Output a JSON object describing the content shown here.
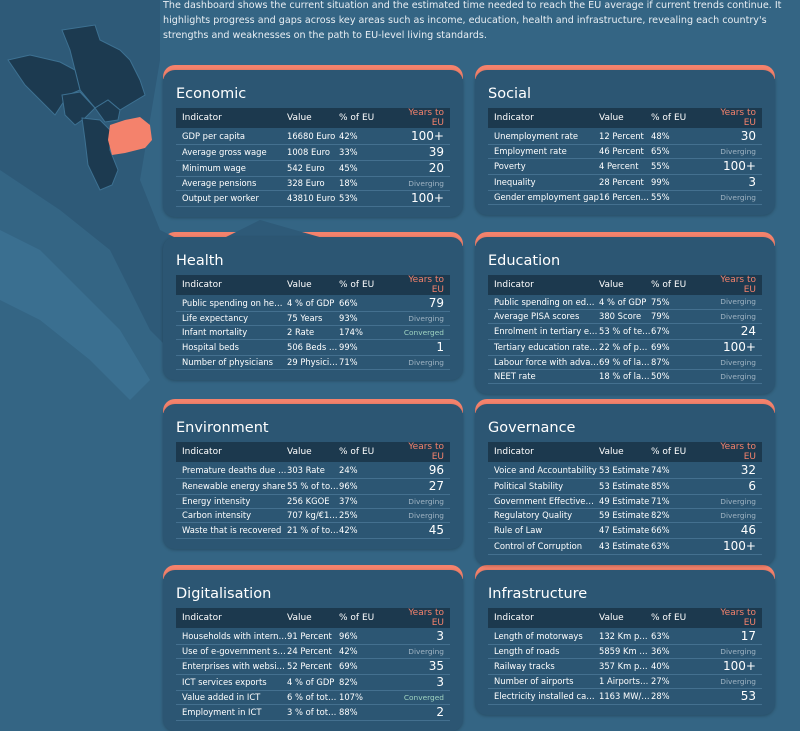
{
  "intro": "The dashboard shows the current situation and the estimated time needed to reach the EU average if current trends continue. It highlights progress and gaps across key areas such as income, education, health and infrastructure, revealing each country's strengths and weaknesses on the path to EU-level living standards.",
  "colors": {
    "background": "#346584",
    "card": "#2c5673",
    "header_row": "#1c394e",
    "accent": "#f4826c",
    "highlighted_country": "#f4826c",
    "other_countries": "#1c3a50"
  },
  "columns": {
    "indicator": "Indicator",
    "value": "Value",
    "pct": "% of EU",
    "years": "Years to EU"
  },
  "sections": [
    {
      "title": "Economic",
      "rows": [
        [
          "GDP per capita",
          "16680 Euro",
          "42%",
          "100+"
        ],
        [
          "Average gross wage",
          "1008 Euro",
          "33%",
          "39"
        ],
        [
          "Minimum wage",
          "542 Euro",
          "45%",
          "20"
        ],
        [
          "Average pensions",
          "328 Euro",
          "18%",
          "Diverging"
        ],
        [
          "Output per worker",
          "43810 Euro",
          "53%",
          "100+"
        ]
      ]
    },
    {
      "title": "Social",
      "rows": [
        [
          "Unemployment rate",
          "12 Percent",
          "48%",
          "30"
        ],
        [
          "Employment rate",
          "46 Percent",
          "65%",
          "Diverging"
        ],
        [
          "Poverty",
          "4 Percent",
          "55%",
          "100+"
        ],
        [
          "Inequality",
          "28 Percent",
          "99%",
          "3"
        ],
        [
          "Gender employment gap",
          "16 Percent…",
          "55%",
          "Diverging"
        ]
      ]
    },
    {
      "title": "Health",
      "rows": [
        [
          "Public spending on health",
          "4 % of GDP",
          "66%",
          "79"
        ],
        [
          "Life expectancy",
          "75 Years",
          "93%",
          "Diverging"
        ],
        [
          "Infant mortality",
          "2 Rate",
          "174%",
          "Converged"
        ],
        [
          "Hospital beds",
          "506 Beds …",
          "99%",
          "1"
        ],
        [
          "Number of physicians",
          "29 Physici…",
          "71%",
          "Diverging"
        ]
      ]
    },
    {
      "title": "Education",
      "rows": [
        [
          "Public spending on edu…",
          "4 % of GDP",
          "75%",
          "Diverging"
        ],
        [
          "Average PISA scores",
          "380 Score",
          "79%",
          "Diverging"
        ],
        [
          "Enrolment in tertiary e…",
          "53 % of te…",
          "67%",
          "24"
        ],
        [
          "Tertiary education rate …",
          "22 % of po…",
          "69%",
          "100+"
        ],
        [
          "Labour force with adva…",
          "69 % of la…",
          "87%",
          "Diverging"
        ],
        [
          "NEET rate",
          "18 % of la…",
          "50%",
          "Diverging"
        ]
      ]
    },
    {
      "title": "Environment",
      "rows": [
        [
          "Premature deaths due t…",
          "303 Rate",
          "24%",
          "96"
        ],
        [
          "Renewable energy share",
          "55 % of to…",
          "96%",
          "27"
        ],
        [
          "Energy intensity",
          "256 KGOE",
          "37%",
          "Diverging"
        ],
        [
          "Carbon intensity",
          "707 kg/€1…",
          "25%",
          "Diverging"
        ],
        [
          "Waste that is recovered",
          "21 % of to…",
          "42%",
          "45"
        ]
      ]
    },
    {
      "title": "Governance",
      "rows": [
        [
          "Voice and Accountability",
          "53 Estimate",
          "74%",
          "32"
        ],
        [
          "Political Stability",
          "53 Estimate",
          "85%",
          "6"
        ],
        [
          "Government Effectiven…",
          "49 Estimate",
          "71%",
          "Diverging"
        ],
        [
          "Regulatory Quality",
          "59 Estimate",
          "82%",
          "Diverging"
        ],
        [
          "Rule of Law",
          "47 Estimate",
          "66%",
          "46"
        ],
        [
          "Control of Corruption",
          "43 Estimate",
          "63%",
          "100+"
        ]
      ]
    },
    {
      "title": "Digitalisation",
      "rows": [
        [
          "Households with intern…",
          "91 Percent",
          "96%",
          "3"
        ],
        [
          "Use of e-government se…",
          "24 Percent",
          "42%",
          "Diverging"
        ],
        [
          "Enterprises with websites",
          "52 Percent",
          "69%",
          "35"
        ],
        [
          "ICT services exports",
          "4 % of GDP",
          "82%",
          "3"
        ],
        [
          "Value added in ICT",
          "6 % of tot…",
          "107%",
          "Converged"
        ],
        [
          "Employment in ICT",
          "3 % of tot…",
          "88%",
          "2"
        ]
      ]
    },
    {
      "title": "Infrastructure",
      "rows": [
        [
          "Length of motorways",
          "132 Km pe…",
          "63%",
          "17"
        ],
        [
          "Length of roads",
          "5859 Km p…",
          "36%",
          "Diverging"
        ],
        [
          "Railway tracks",
          "357 Km pe…",
          "40%",
          "100+"
        ],
        [
          "Number of airports",
          "1 Airports …",
          "27%",
          "Diverging"
        ],
        [
          "Electricity installed cap…",
          "1163 MW/…",
          "28%",
          "53"
        ]
      ]
    }
  ]
}
